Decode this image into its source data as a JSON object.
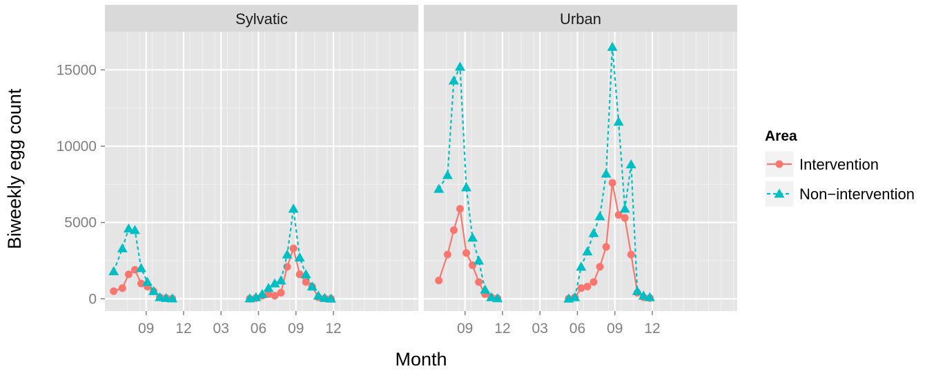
{
  "chart_data": {
    "type": "line",
    "xlabel": "Month",
    "ylabel": "Biweekly egg count",
    "ylim": [
      -800,
      17500
    ],
    "yticks": [
      0,
      5000,
      10000,
      15000
    ],
    "xlim": [
      -1.3,
      23.8
    ],
    "xticks": [
      {
        "pos": 2,
        "label": "09"
      },
      {
        "pos": 5,
        "label": "12"
      },
      {
        "pos": 8,
        "label": "03"
      },
      {
        "pos": 11,
        "label": "06"
      },
      {
        "pos": 14,
        "label": "09"
      },
      {
        "pos": 17,
        "label": "12"
      }
    ],
    "grid": true,
    "legend_placement": "right",
    "legend": {
      "title": "Area",
      "entries": [
        {
          "label": "Intervention",
          "color": "#F8766D",
          "marker": "circle",
          "line": "solid"
        },
        {
          "label": "Non−intervention",
          "color": "#00BFC4",
          "marker": "triangle",
          "line": "dashed"
        }
      ]
    },
    "panels": [
      {
        "title": "Sylvatic",
        "series": [
          {
            "name": "Intervention",
            "color": "#F8766D",
            "points": [
              [
                -0.6,
                500
              ],
              [
                0.1,
                700
              ],
              [
                0.6,
                1600
              ],
              [
                1.1,
                1900
              ],
              [
                1.6,
                1000
              ],
              [
                2.1,
                800
              ],
              [
                2.6,
                500
              ],
              [
                3.1,
                100
              ],
              [
                3.6,
                50
              ],
              [
                4.1,
                20
              ],
              [
                10.3,
                10
              ],
              [
                10.8,
                50
              ],
              [
                11.3,
                200
              ],
              [
                11.8,
                300
              ],
              [
                12.3,
                200
              ],
              [
                12.8,
                400
              ],
              [
                13.3,
                2100
              ],
              [
                13.8,
                3300
              ],
              [
                14.3,
                1600
              ],
              [
                14.8,
                1100
              ],
              [
                15.3,
                800
              ],
              [
                15.8,
                100
              ],
              [
                16.3,
                30
              ],
              [
                16.8,
                10
              ]
            ]
          },
          {
            "name": "Non−intervention",
            "color": "#00BFC4",
            "points": [
              [
                -0.6,
                1800
              ],
              [
                0.1,
                3300
              ],
              [
                0.6,
                4600
              ],
              [
                1.1,
                4500
              ],
              [
                1.6,
                2000
              ],
              [
                2.1,
                1100
              ],
              [
                2.6,
                500
              ],
              [
                3.1,
                100
              ],
              [
                3.6,
                50
              ],
              [
                4.1,
                20
              ],
              [
                10.3,
                20
              ],
              [
                10.8,
                100
              ],
              [
                11.3,
                300
              ],
              [
                11.8,
                700
              ],
              [
                12.3,
                1000
              ],
              [
                12.8,
                1200
              ],
              [
                13.3,
                2900
              ],
              [
                13.8,
                5900
              ],
              [
                14.3,
                2700
              ],
              [
                14.8,
                1600
              ],
              [
                15.3,
                800
              ],
              [
                15.8,
                200
              ],
              [
                16.3,
                50
              ],
              [
                16.8,
                10
              ]
            ]
          }
        ]
      },
      {
        "title": "Urban",
        "series": [
          {
            "name": "Intervention",
            "color": "#F8766D",
            "points": [
              [
                -0.1,
                1200
              ],
              [
                0.6,
                2900
              ],
              [
                1.1,
                4500
              ],
              [
                1.6,
                5900
              ],
              [
                2.1,
                3000
              ],
              [
                2.6,
                2200
              ],
              [
                3.1,
                1100
              ],
              [
                3.6,
                300
              ],
              [
                4.1,
                100
              ],
              [
                4.6,
                30
              ],
              [
                10.3,
                10
              ],
              [
                10.8,
                100
              ],
              [
                11.3,
                700
              ],
              [
                11.8,
                800
              ],
              [
                12.3,
                1100
              ],
              [
                12.8,
                2100
              ],
              [
                13.3,
                3400
              ],
              [
                13.8,
                7600
              ],
              [
                14.3,
                5500
              ],
              [
                14.8,
                5300
              ],
              [
                15.3,
                2900
              ],
              [
                15.8,
                400
              ],
              [
                16.3,
                100
              ],
              [
                16.8,
                50
              ]
            ]
          },
          {
            "name": "Non−intervention",
            "color": "#00BFC4",
            "points": [
              [
                -0.1,
                7200
              ],
              [
                0.6,
                8100
              ],
              [
                1.1,
                14300
              ],
              [
                1.6,
                15200
              ],
              [
                2.1,
                7300
              ],
              [
                2.6,
                4000
              ],
              [
                3.1,
                2500
              ],
              [
                3.6,
                600
              ],
              [
                4.1,
                100
              ],
              [
                4.6,
                30
              ],
              [
                10.3,
                10
              ],
              [
                10.8,
                100
              ],
              [
                11.3,
                2100
              ],
              [
                11.8,
                3100
              ],
              [
                12.3,
                4300
              ],
              [
                12.8,
                5400
              ],
              [
                13.3,
                8200
              ],
              [
                13.8,
                16500
              ],
              [
                14.3,
                11600
              ],
              [
                14.8,
                5900
              ],
              [
                15.3,
                8800
              ],
              [
                15.8,
                500
              ],
              [
                16.3,
                200
              ],
              [
                16.8,
                100
              ]
            ]
          }
        ]
      }
    ]
  }
}
